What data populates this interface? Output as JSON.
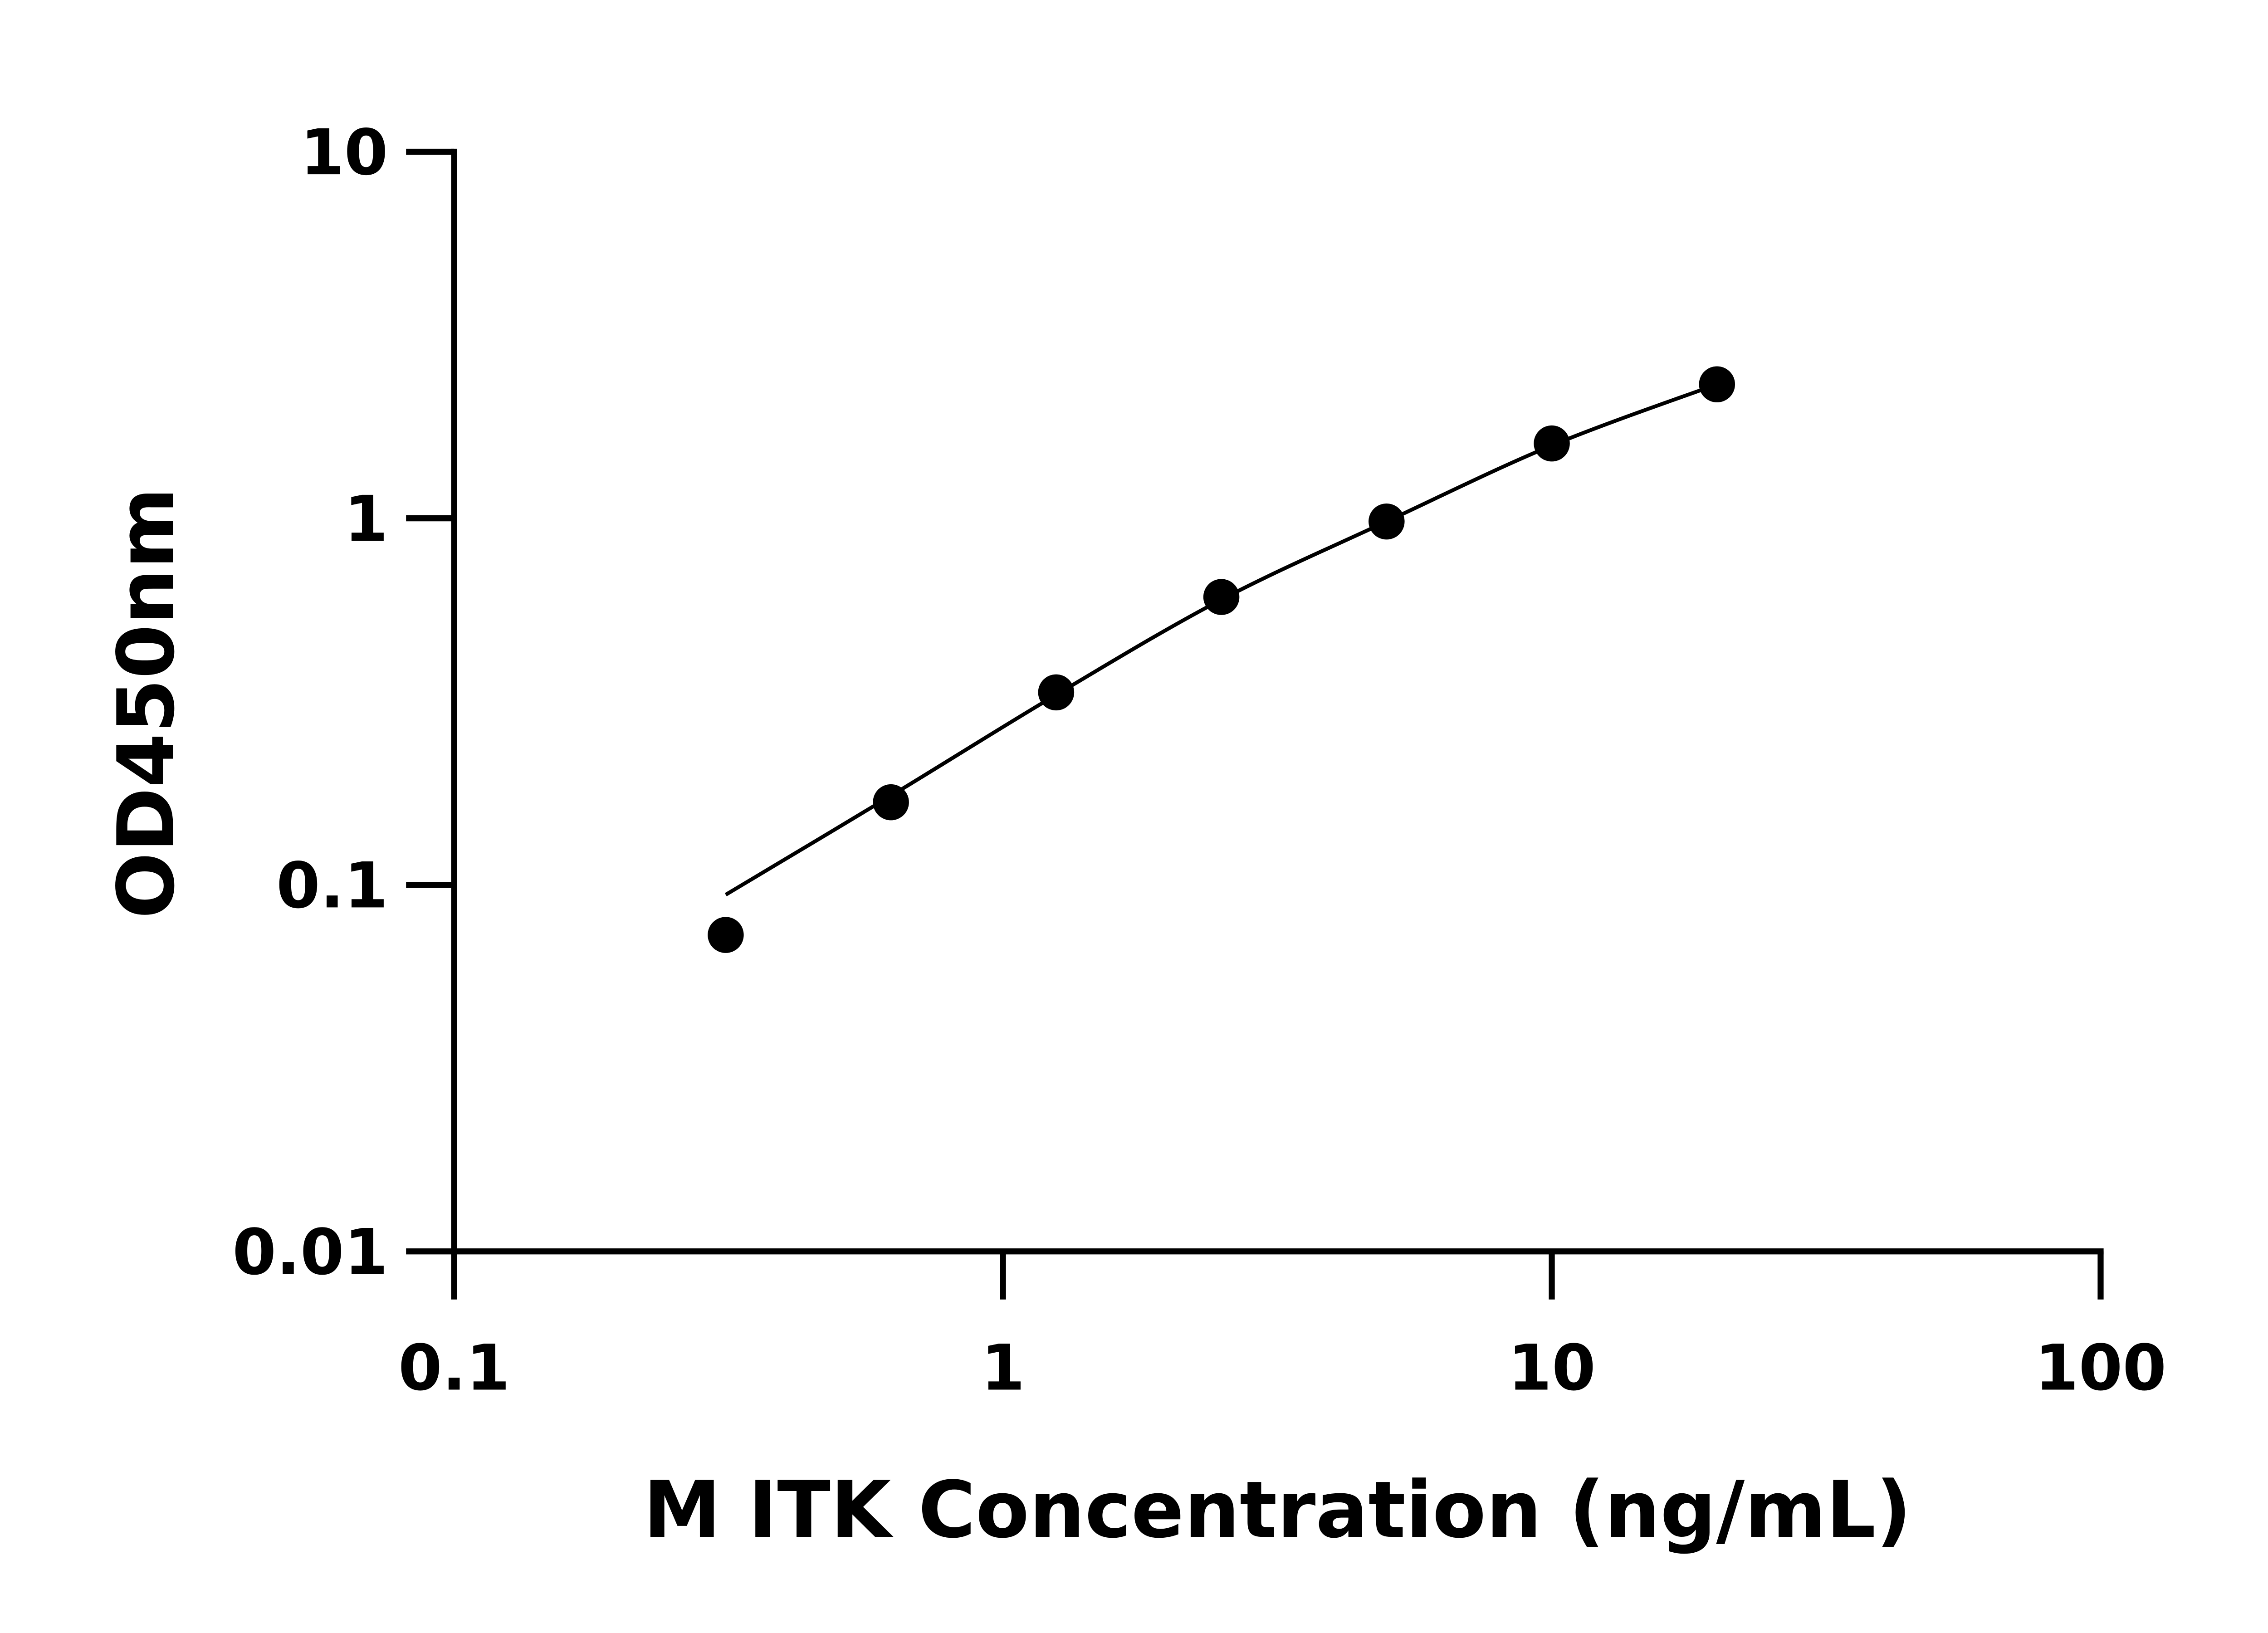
{
  "chart_data": {
    "type": "scatter",
    "title": "",
    "xlabel": "M ITK Concentration (ng/mL)",
    "ylabel": "OD450nm",
    "xscale": "log",
    "yscale": "log",
    "xlim": [
      0.1,
      100
    ],
    "ylim": [
      0.01,
      10
    ],
    "xticks": [
      "0.1",
      "1",
      "10",
      "100"
    ],
    "yticks": [
      "0.01",
      "0.1",
      "1",
      "10"
    ],
    "grid": false,
    "x": [
      0.3125,
      0.625,
      1.25,
      2.5,
      5,
      10,
      20
    ],
    "y": [
      0.073,
      0.168,
      0.335,
      0.61,
      0.98,
      1.6,
      2.32
    ],
    "fit": {
      "x": [
        0.3125,
        0.625,
        1.25,
        2.5,
        5,
        10,
        20
      ],
      "y": [
        0.094,
        0.175,
        0.33,
        0.6,
        0.98,
        1.58,
        2.32
      ]
    },
    "colors": {
      "points": "#000000",
      "line": "#000000",
      "axes": "#000000"
    }
  }
}
